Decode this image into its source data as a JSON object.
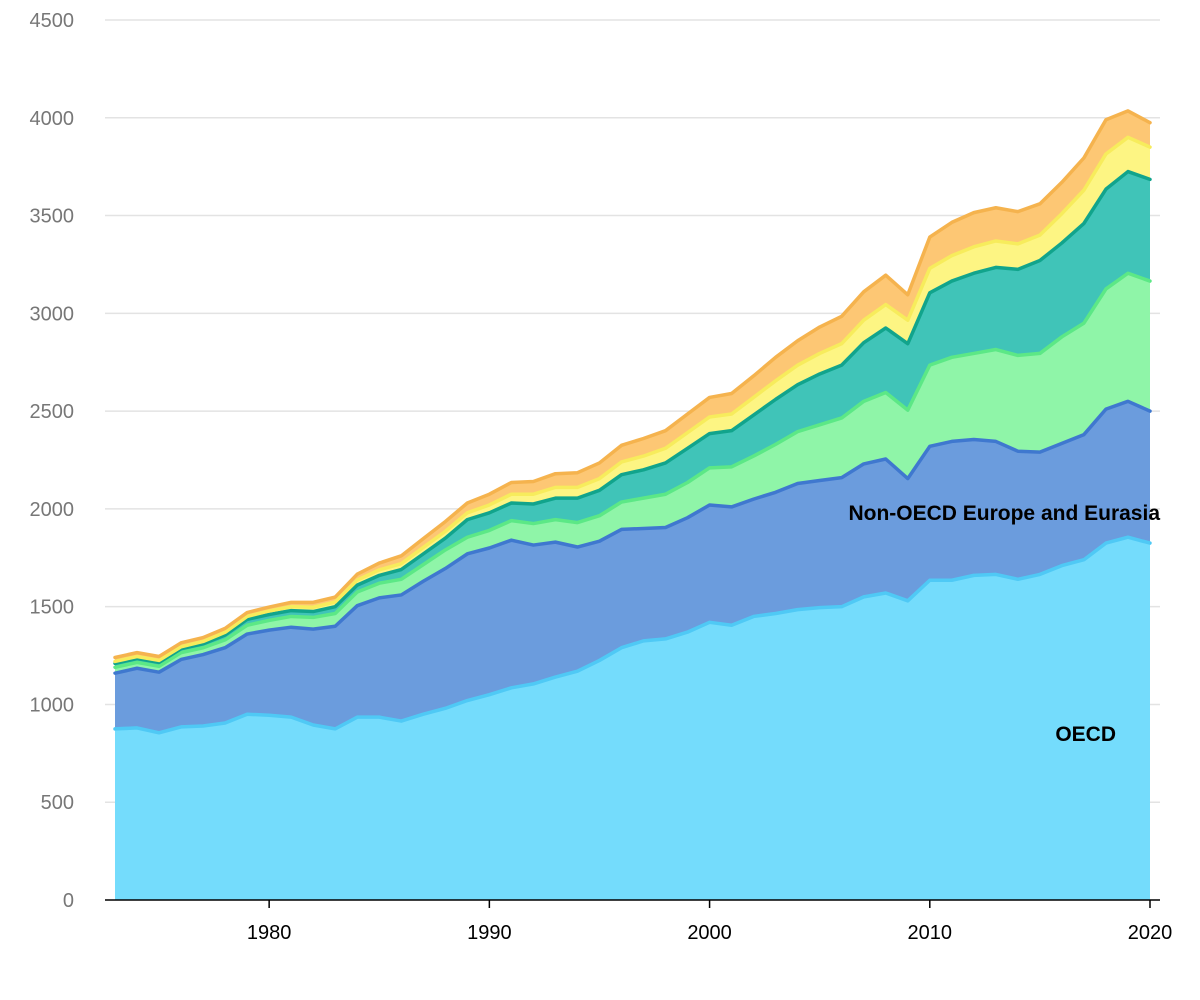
{
  "chart_data": {
    "type": "area",
    "stacked": true,
    "x_range": [
      1973,
      2020
    ],
    "ylim": [
      0,
      4500
    ],
    "y_ticks": [
      0,
      500,
      1000,
      1500,
      2000,
      2500,
      3000,
      3500,
      4000,
      4500
    ],
    "x_ticks": [
      1980,
      1990,
      2000,
      2010,
      2020
    ],
    "grid": true,
    "xlabel": "",
    "ylabel": "",
    "x": [
      1973,
      1974,
      1975,
      1976,
      1977,
      1978,
      1979,
      1980,
      1981,
      1982,
      1983,
      1984,
      1985,
      1986,
      1987,
      1988,
      1989,
      1990,
      1991,
      1992,
      1993,
      1994,
      1995,
      1996,
      1997,
      1998,
      1999,
      2000,
      2001,
      2002,
      2003,
      2004,
      2005,
      2006,
      2007,
      2008,
      2009,
      2010,
      2011,
      2012,
      2013,
      2014,
      2015,
      2016,
      2017,
      2018,
      2019,
      2020
    ],
    "series": [
      {
        "name": "OECD",
        "color": "#74dcfc",
        "line_color": "#4fc9f5",
        "values": [
          875,
          880,
          855,
          885,
          890,
          905,
          950,
          945,
          935,
          895,
          875,
          935,
          935,
          915,
          950,
          980,
          1020,
          1050,
          1085,
          1105,
          1140,
          1170,
          1225,
          1290,
          1325,
          1335,
          1370,
          1420,
          1405,
          1450,
          1465,
          1485,
          1495,
          1500,
          1550,
          1570,
          1530,
          1635,
          1635,
          1660,
          1665,
          1640,
          1665,
          1710,
          1740,
          1825,
          1855,
          1825
        ]
      },
      {
        "name": "Non-OECD Europe and Eurasia",
        "color": "#6b9cdd",
        "line_color": "#3f78cf",
        "values": [
          285,
          305,
          310,
          345,
          365,
          385,
          410,
          435,
          460,
          490,
          525,
          570,
          610,
          645,
          680,
          715,
          750,
          750,
          755,
          710,
          690,
          635,
          610,
          605,
          575,
          570,
          585,
          600,
          605,
          600,
          620,
          645,
          650,
          660,
          680,
          685,
          625,
          685,
          710,
          695,
          680,
          655,
          625,
          625,
          640,
          685,
          695,
          675
        ]
      },
      {
        "name": "",
        "color": "#8ff5a8",
        "line_color": "#5ce886",
        "values": [
          30,
          30,
          30,
          35,
          35,
          40,
          45,
          50,
          55,
          60,
          65,
          70,
          75,
          80,
          85,
          95,
          85,
          90,
          100,
          110,
          115,
          125,
          130,
          140,
          155,
          170,
          180,
          190,
          205,
          220,
          245,
          265,
          285,
          305,
          320,
          340,
          350,
          415,
          430,
          440,
          470,
          490,
          505,
          545,
          570,
          615,
          655,
          665
        ]
      },
      {
        "name": "",
        "color": "#40c4b8",
        "line_color": "#11a48c",
        "values": [
          20,
          20,
          20,
          20,
          20,
          25,
          30,
          30,
          30,
          30,
          35,
          35,
          40,
          50,
          55,
          60,
          90,
          90,
          90,
          100,
          110,
          125,
          130,
          140,
          145,
          160,
          175,
          175,
          185,
          210,
          230,
          240,
          260,
          270,
          300,
          330,
          340,
          370,
          390,
          410,
          420,
          440,
          475,
          480,
          510,
          510,
          520,
          520
        ]
      },
      {
        "name": "",
        "color": "#fdf583",
        "line_color": "#f7ec5c",
        "values": [
          10,
          10,
          10,
          10,
          12,
          14,
          15,
          18,
          20,
          22,
          24,
          26,
          28,
          30,
          33,
          35,
          35,
          40,
          45,
          50,
          55,
          55,
          60,
          65,
          70,
          75,
          80,
          85,
          85,
          90,
          95,
          100,
          105,
          110,
          115,
          120,
          120,
          125,
          130,
          135,
          135,
          130,
          130,
          150,
          170,
          180,
          175,
          165
        ]
      },
      {
        "name": "",
        "color": "#fdc774",
        "line_color": "#f5b34e",
        "values": [
          20,
          20,
          20,
          20,
          20,
          20,
          20,
          20,
          22,
          25,
          25,
          30,
          35,
          40,
          45,
          50,
          50,
          55,
          60,
          65,
          70,
          75,
          80,
          85,
          90,
          90,
          95,
          100,
          105,
          110,
          120,
          125,
          135,
          140,
          145,
          150,
          130,
          160,
          170,
          175,
          170,
          165,
          160,
          160,
          165,
          175,
          135,
          125
        ]
      }
    ]
  }
}
